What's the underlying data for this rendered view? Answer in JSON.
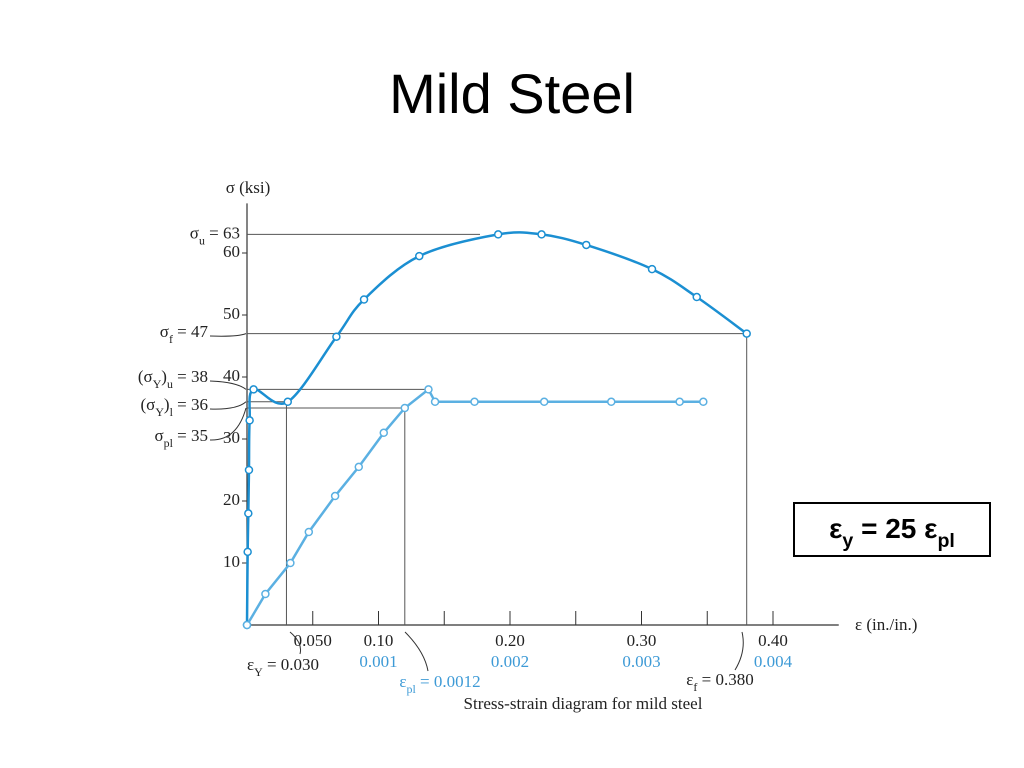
{
  "slide": {
    "title": "Mild Steel",
    "callout": {
      "label_parts": [
        {
          "text": "ε"
        },
        {
          "sub": "y"
        },
        {
          "text": " = 25 ε"
        },
        {
          "sub": "pl"
        }
      ]
    }
  },
  "chart_data": {
    "type": "line",
    "y_label": "σ (ksi)",
    "x_label": "ε (in./in.)",
    "caption": "Stress-strain diagram for mild steel",
    "xlim": [
      0,
      0.45
    ],
    "x2lim": [
      0,
      0.0045
    ],
    "ylim": [
      0,
      68
    ],
    "xticks": [
      {
        "value": 0.05,
        "label": "0.050"
      },
      {
        "value": 0.1,
        "label": "0.10"
      },
      {
        "value": 0.2,
        "label": "0.20"
      },
      {
        "value": 0.3,
        "label": "0.30"
      },
      {
        "value": 0.4,
        "label": "0.40"
      }
    ],
    "x_minor_ticks": [
      0.15,
      0.25,
      0.35
    ],
    "x2ticks": [
      0.001,
      0.002,
      0.003,
      0.004
    ],
    "x2_color": "#3d9ad6",
    "yticks": [
      10,
      20,
      30,
      40,
      50,
      60
    ],
    "y_markers": [
      {
        "value": 63,
        "label_parts": [
          {
            "text": "σ"
          },
          {
            "sub": "u"
          },
          {
            "text": " = 63"
          }
        ]
      },
      {
        "value": 47,
        "label_parts": [
          {
            "text": "σ"
          },
          {
            "sub": "f"
          },
          {
            "text": " = 47"
          }
        ]
      },
      {
        "value": 38,
        "label_parts": [
          {
            "text": "(σ"
          },
          {
            "sub": "Y"
          },
          {
            "text": ")"
          },
          {
            "sub": "u"
          },
          {
            "text": " = 38"
          }
        ]
      },
      {
        "value": 36,
        "label_parts": [
          {
            "text": "(σ"
          },
          {
            "sub": "Y"
          },
          {
            "text": ")"
          },
          {
            "sub": "l"
          },
          {
            "text": " = 36"
          }
        ]
      },
      {
        "value": 35,
        "label_parts": [
          {
            "text": "σ"
          },
          {
            "sub": "pl"
          },
          {
            "text": " = 35"
          }
        ]
      }
    ],
    "x_markers": [
      {
        "value": 0.03,
        "label_parts": [
          {
            "text": "ε"
          },
          {
            "sub": "Y"
          },
          {
            "text": " = 0.030"
          }
        ]
      },
      {
        "value": 0.0012,
        "axis": "x2",
        "label_parts": [
          {
            "text": "ε"
          },
          {
            "sub": "pl"
          },
          {
            "text": " = 0.0012"
          }
        ]
      },
      {
        "value": 0.38,
        "label_parts": [
          {
            "text": "ε"
          },
          {
            "sub": "f"
          },
          {
            "text": " = 0.380"
          }
        ]
      }
    ],
    "series": [
      {
        "color": "#1b8fd2",
        "smooth": true,
        "x": [
          0,
          0.0005,
          0.001,
          0.0015,
          0.002,
          0.005,
          0.031,
          0.068,
          0.089,
          0.131,
          0.191,
          0.224,
          0.258,
          0.308,
          0.342,
          0.38
        ],
        "values": [
          0,
          11.8,
          18,
          25,
          33,
          38,
          36,
          46.5,
          52.5,
          59.5,
          63,
          63,
          61.3,
          57.4,
          52.9,
          47
        ]
      },
      {
        "color": "#5bb0e2",
        "smooth": false,
        "axis": "x2",
        "x": [
          0,
          0.00014,
          0.00033,
          0.00047,
          0.00067,
          0.00085,
          0.00104,
          0.0012,
          0.00138,
          0.00143,
          0.00173,
          0.00226,
          0.00277,
          0.00329,
          0.00347
        ],
        "values": [
          0,
          5,
          10,
          15,
          20.8,
          25.5,
          31,
          35,
          38,
          36,
          36,
          36,
          36,
          36,
          36
        ]
      }
    ]
  }
}
